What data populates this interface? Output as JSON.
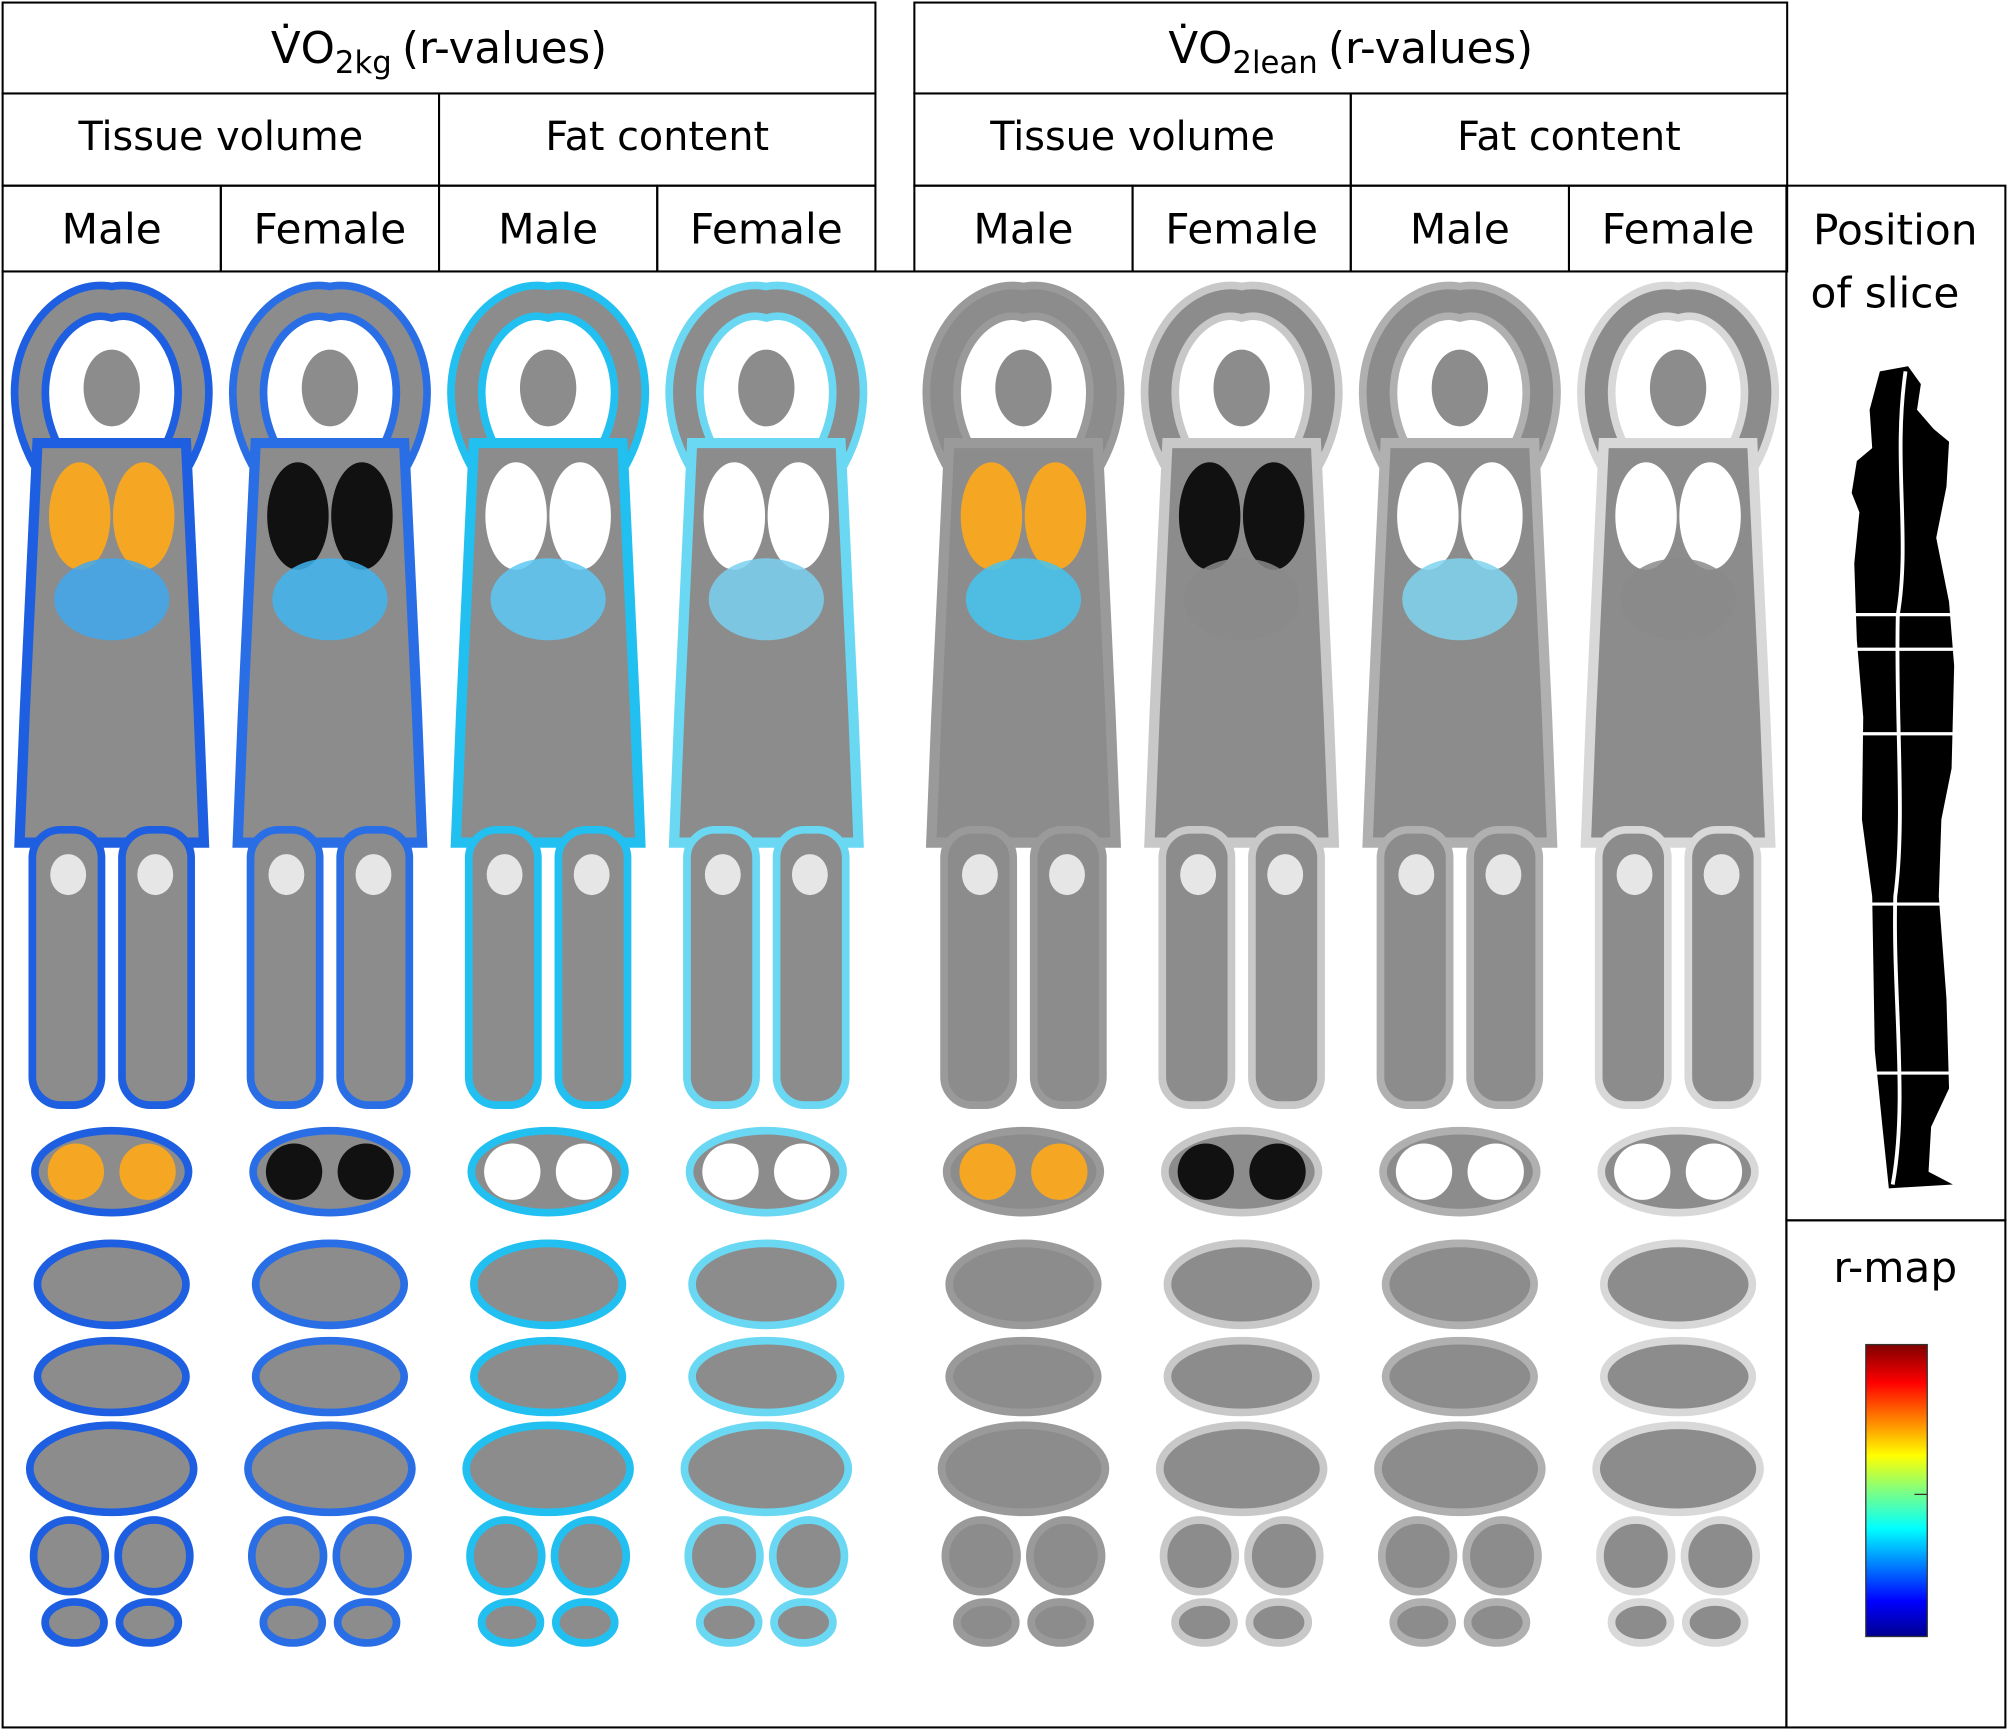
{
  "header": {
    "groups": [
      {
        "title": {
          "symbol": "V̇O",
          "subscript": "2kg",
          "suffix": "(r-values)"
        },
        "sections": [
          {
            "label": "Tissue volume",
            "columns": [
              "Male",
              "Female"
            ]
          },
          {
            "label": "Fat content",
            "columns": [
              "Male",
              "Female"
            ]
          }
        ]
      },
      {
        "title": {
          "symbol": "V̇O",
          "subscript": "2lean",
          "suffix": "(r-values)"
        },
        "sections": [
          {
            "label": "Tissue volume",
            "columns": [
              "Male",
              "Female"
            ]
          },
          {
            "label": "Fat content",
            "columns": [
              "Male",
              "Female"
            ]
          }
        ]
      }
    ]
  },
  "side_panel": {
    "position_label": [
      "Position",
      "of slice"
    ],
    "rmap_label": "r-map"
  }
}
